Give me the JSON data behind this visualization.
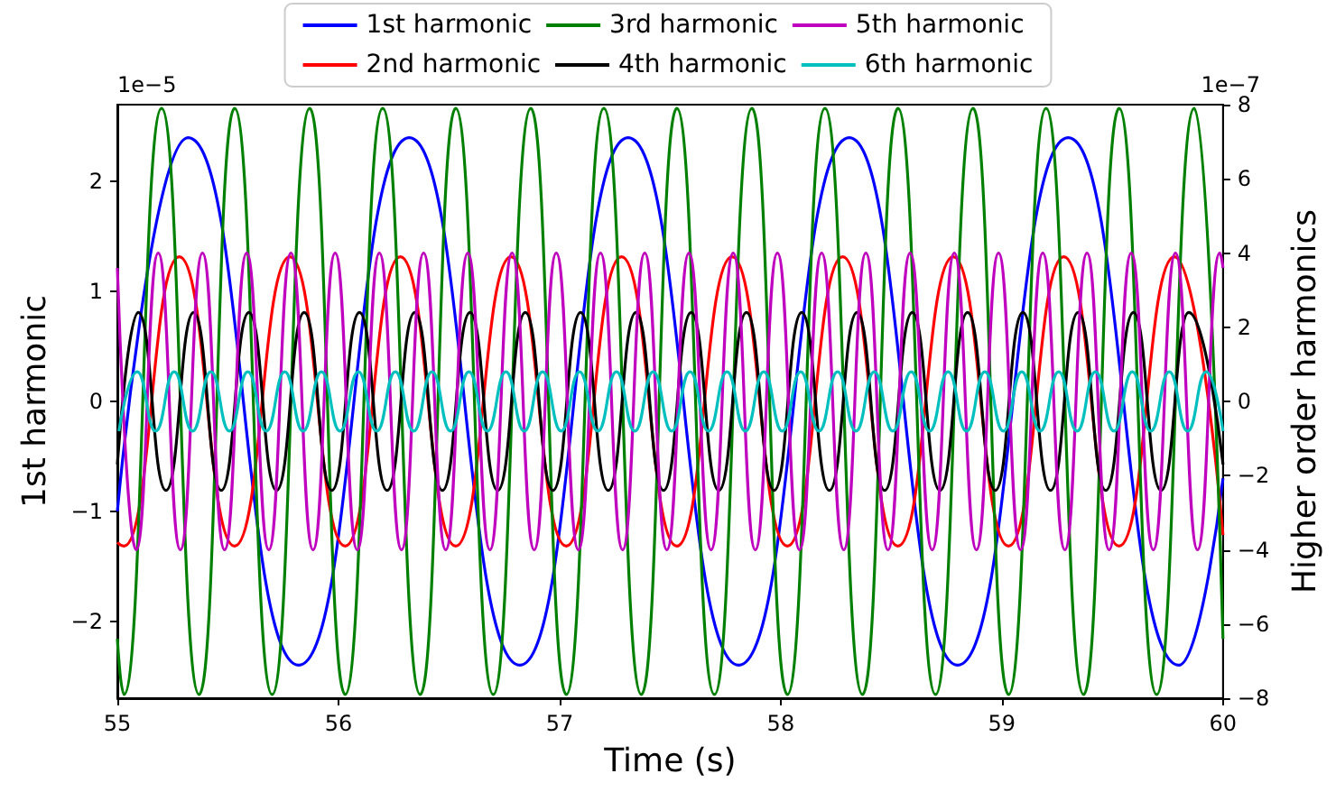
{
  "chart_data": {
    "type": "line",
    "xlabel": "Time (s)",
    "ylabel": "1st harmonic",
    "y2label": "Higher order harmonics",
    "annotations": [
      "1e−5",
      "1e−7"
    ],
    "xlim": [
      55,
      60
    ],
    "xticks": [
      55,
      56,
      57,
      58,
      59,
      60
    ],
    "ylim": [
      -2.7,
      2.7
    ],
    "yticks": [
      -2,
      -1,
      0,
      1,
      2
    ],
    "y2lim": [
      -8,
      8
    ],
    "y2ticks": [
      -8,
      -6,
      -4,
      -2,
      0,
      2,
      4,
      6,
      8
    ],
    "grid": false,
    "legend": "top",
    "series": [
      {
        "name": "1st harmonic",
        "color": "#0000ff",
        "x": [
          55,
          55.32,
          55.82,
          56.32,
          56.82,
          57.31,
          57.81,
          58.31,
          58.8,
          59.3,
          59.8,
          60
        ],
        "values": [
          -1.0,
          2.4,
          -2.4,
          2.4,
          -2.4,
          2.4,
          -2.4,
          2.4,
          -2.4,
          2.4,
          -2.4,
          -0.7
        ]
      },
      {
        "name": "2nd harmonic",
        "color": "#ff0000",
        "axis": "y2",
        "x": [
          55,
          55.03,
          55.28,
          55.53,
          55.78,
          56.03,
          56.28,
          56.53,
          56.78,
          57.03,
          57.28,
          57.53,
          57.78,
          58.03,
          58.28,
          58.53,
          58.78,
          59.03,
          59.28,
          59.53,
          59.78,
          60
        ],
        "values": [
          -3.8,
          -3.9,
          3.9,
          -3.9,
          3.9,
          -3.9,
          3.9,
          -3.9,
          3.9,
          -3.9,
          3.9,
          -3.9,
          3.9,
          -3.9,
          3.9,
          -3.9,
          3.9,
          -3.9,
          3.9,
          -3.9,
          3.9,
          -3.6
        ]
      },
      {
        "name": "3rd harmonic",
        "color": "#008000",
        "axis": "y2",
        "x": [
          55,
          55.03,
          55.2,
          55.37,
          55.53,
          55.7,
          55.87,
          56.03,
          56.2,
          56.37,
          56.53,
          56.7,
          56.87,
          57.03,
          57.2,
          57.37,
          57.53,
          57.7,
          57.87,
          58.03,
          58.2,
          58.37,
          58.53,
          58.7,
          58.87,
          59.03,
          59.2,
          59.37,
          59.53,
          59.7,
          59.87,
          60
        ],
        "values": [
          -6.4,
          -7.9,
          7.9,
          -7.9,
          7.9,
          -7.9,
          7.9,
          -7.9,
          7.9,
          -7.9,
          7.9,
          -7.9,
          7.9,
          -7.9,
          7.9,
          -7.9,
          7.9,
          -7.9,
          7.9,
          -7.9,
          7.9,
          -7.9,
          7.9,
          -7.9,
          7.9,
          -7.9,
          7.9,
          -7.9,
          7.9,
          -7.9,
          7.9,
          -6.4
        ]
      },
      {
        "name": "4th harmonic",
        "color": "#000000",
        "axis": "y2",
        "x": [
          55,
          55.095,
          55.22,
          55.345,
          55.47,
          55.595,
          55.72,
          55.845,
          55.97,
          56.095,
          56.22,
          56.345,
          56.47,
          56.595,
          56.72,
          56.845,
          56.97,
          57.095,
          57.22,
          57.345,
          57.47,
          57.595,
          57.72,
          57.845,
          57.97,
          58.095,
          58.22,
          58.345,
          58.47,
          58.595,
          58.72,
          58.845,
          58.97,
          59.095,
          59.22,
          59.345,
          59.47,
          59.595,
          59.72,
          59.845,
          60
        ],
        "values": [
          -1.7,
          2.4,
          -2.4,
          2.4,
          -2.4,
          2.4,
          -2.4,
          2.4,
          -2.4,
          2.4,
          -2.4,
          2.4,
          -2.4,
          2.4,
          -2.4,
          2.4,
          -2.4,
          2.4,
          -2.4,
          2.4,
          -2.4,
          2.4,
          -2.4,
          2.4,
          -2.4,
          2.4,
          -2.4,
          2.4,
          -2.4,
          2.4,
          -2.4,
          2.4,
          -2.4,
          2.4,
          -2.4,
          2.4,
          -2.4,
          2.4,
          -2.4,
          2.4,
          -1.7
        ]
      },
      {
        "name": "5th harmonic",
        "color": "#bf00bf",
        "axis": "y2",
        "x": [
          55,
          55.085,
          55.185,
          55.285,
          55.385,
          55.485,
          55.585,
          55.685,
          55.785,
          55.885,
          55.985,
          56.085,
          56.185,
          56.285,
          56.385,
          56.485,
          56.585,
          56.685,
          56.785,
          56.885,
          56.985,
          57.085,
          57.185,
          57.285,
          57.385,
          57.485,
          57.585,
          57.685,
          57.785,
          57.885,
          57.985,
          58.085,
          58.185,
          58.285,
          58.385,
          58.485,
          58.585,
          58.685,
          58.785,
          58.885,
          58.985,
          59.085,
          59.185,
          59.285,
          59.385,
          59.485,
          59.585,
          59.685,
          59.785,
          59.885,
          59.985,
          60
        ],
        "values": [
          3.6,
          -4,
          4,
          -4,
          4,
          -4,
          4,
          -4,
          4,
          -4,
          4,
          -4,
          4,
          -4,
          4,
          -4,
          4,
          -4,
          4,
          -4,
          4,
          -4,
          4,
          -4,
          4,
          -4,
          4,
          -4,
          4,
          -4,
          4,
          -4,
          4,
          -4,
          4,
          -4,
          4,
          -4,
          4,
          -4,
          4,
          -4,
          4,
          -4,
          4,
          -4,
          4,
          -4,
          4,
          -4,
          4,
          3.6
        ]
      },
      {
        "name": "6th harmonic",
        "color": "#00bfbf",
        "axis": "y2",
        "x": [
          55.007,
          55.09,
          55.173,
          55.257,
          55.34,
          55.423,
          55.507,
          55.59,
          55.673,
          55.757,
          55.84,
          55.923,
          56.007,
          56.09,
          56.173,
          56.257,
          56.34,
          56.423,
          56.507,
          56.59,
          56.673,
          56.757,
          56.84,
          56.923,
          57.007,
          57.09,
          57.173,
          57.257,
          57.34,
          57.423,
          57.507,
          57.59,
          57.673,
          57.757,
          57.84,
          57.923,
          58.007,
          58.09,
          58.173,
          58.257,
          58.34,
          58.423,
          58.507,
          58.59,
          58.673,
          58.757,
          58.84,
          58.923,
          59.007,
          59.09,
          59.173,
          59.257,
          59.34,
          59.423,
          59.507,
          59.59,
          59.673,
          59.757,
          59.84,
          59.924,
          60
        ],
        "values": [
          -0.8,
          0.8,
          -0.8,
          0.8,
          -0.8,
          0.8,
          -0.8,
          0.8,
          -0.8,
          0.8,
          -0.8,
          0.8,
          -0.8,
          0.8,
          -0.8,
          0.8,
          -0.8,
          0.8,
          -0.8,
          0.8,
          -0.8,
          0.8,
          -0.8,
          0.8,
          -0.8,
          0.8,
          -0.8,
          0.8,
          -0.8,
          0.8,
          -0.8,
          0.8,
          -0.8,
          0.8,
          -0.8,
          0.8,
          -0.8,
          0.8,
          -0.8,
          0.8,
          -0.8,
          0.8,
          -0.8,
          0.8,
          -0.8,
          0.8,
          -0.8,
          0.8,
          -0.8,
          0.8,
          -0.8,
          0.8,
          -0.8,
          0.8,
          -0.8,
          0.8,
          -0.8,
          0.8,
          -0.8,
          0.8,
          -0.8
        ]
      }
    ]
  }
}
